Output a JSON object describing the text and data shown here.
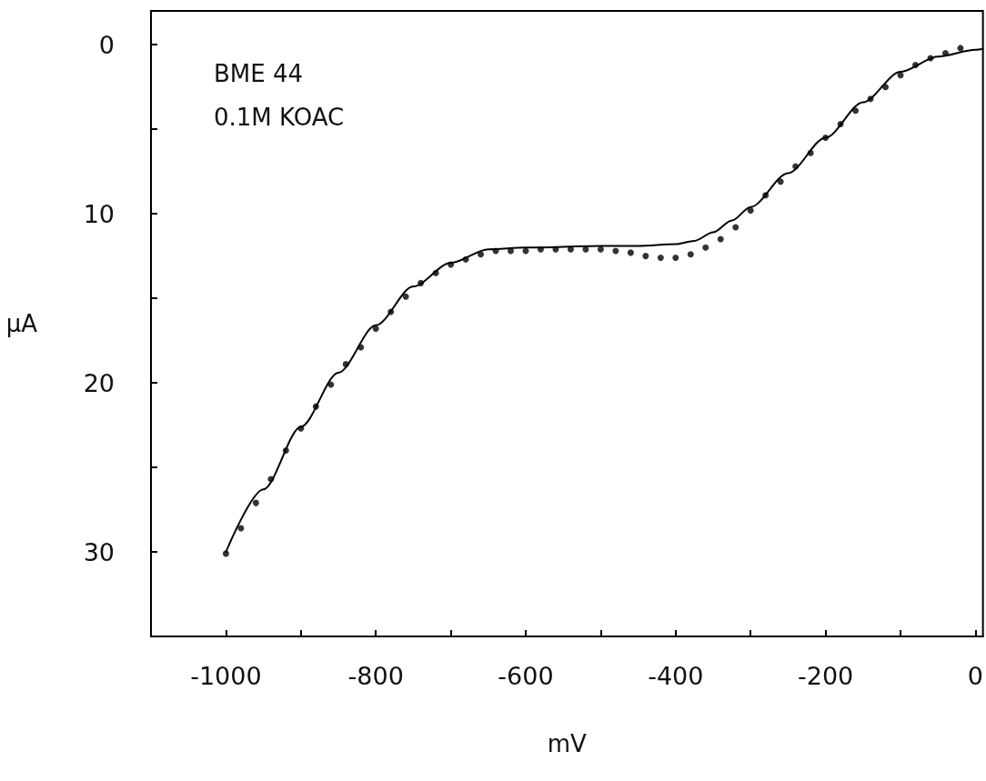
{
  "chart_data": {
    "type": "scatter",
    "xlabel": "mV",
    "ylabel": "μA",
    "annotations": [
      "BME 44",
      "0.1M KOAC"
    ],
    "xlim": [
      -1100,
      10
    ],
    "ylim": [
      35,
      -2
    ],
    "xticks": [
      {
        "value": -1100,
        "label": null
      },
      -1000,
      {
        "value": -900,
        "label": null
      },
      -800,
      {
        "value": -700,
        "label": null
      },
      -600,
      {
        "value": -500,
        "label": null
      },
      -400,
      {
        "value": -300,
        "label": null
      },
      -200,
      {
        "value": -100,
        "label": null
      },
      0
    ],
    "yticks": [
      0,
      {
        "value": 5,
        "label": null
      },
      10,
      {
        "value": 15,
        "label": null
      },
      20,
      {
        "value": 25,
        "label": null
      },
      30
    ],
    "grid": false,
    "series": [
      {
        "type": "line",
        "marker": "none",
        "line_style": "solid",
        "color": "#000000",
        "x": [
          -1000,
          -950,
          -900,
          -850,
          -800,
          -750,
          -700,
          -650,
          -600,
          -500,
          -450,
          -400,
          -375,
          -350,
          -325,
          -300,
          -250,
          -200,
          -150,
          -100,
          -50,
          0,
          10
        ],
        "values": [
          30.0,
          26.3,
          22.6,
          19.4,
          16.6,
          14.3,
          12.9,
          12.1,
          12.0,
          11.9,
          11.9,
          11.8,
          11.6,
          11.1,
          10.4,
          9.6,
          7.6,
          5.5,
          3.4,
          1.6,
          0.7,
          0.3,
          0.25
        ]
      },
      {
        "marker": "circle",
        "color": "#000000",
        "x": [
          -1000,
          -980,
          -960,
          -940,
          -920,
          -900,
          -880,
          -860,
          -840,
          -820,
          -800,
          -780,
          -760,
          -740,
          -720,
          -700,
          -680,
          -660,
          -640,
          -620,
          -600,
          -580,
          -560,
          -540,
          -520,
          -500,
          -480,
          -460,
          -440,
          -420,
          -400,
          -380,
          -360,
          -340,
          -320,
          -300,
          -280,
          -260,
          -240,
          -220,
          -200,
          -180,
          -160,
          -140,
          -120,
          -100,
          -80,
          -60,
          -40,
          -20
        ],
        "values": [
          30.1,
          28.6,
          27.1,
          25.7,
          24.0,
          22.7,
          21.4,
          20.1,
          18.9,
          17.9,
          16.8,
          15.8,
          14.9,
          14.1,
          13.5,
          13.0,
          12.7,
          12.4,
          12.2,
          12.2,
          12.2,
          12.1,
          12.1,
          12.1,
          12.1,
          12.1,
          12.2,
          12.3,
          12.5,
          12.6,
          12.6,
          12.4,
          12.0,
          11.5,
          10.8,
          9.8,
          8.9,
          8.1,
          7.2,
          6.4,
          5.5,
          4.7,
          3.9,
          3.2,
          2.5,
          1.8,
          1.2,
          0.8,
          0.5,
          0.2
        ]
      }
    ]
  }
}
